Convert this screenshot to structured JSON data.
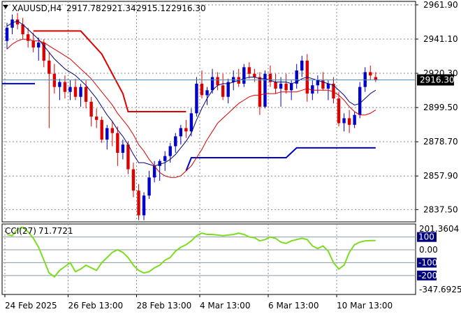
{
  "header": {
    "symbol": "XAUUSD,H4",
    "open": "2917.78",
    "high": "2921.34",
    "low": "2915.12",
    "close": "2916.30"
  },
  "colors": {
    "bull": "#0000cc",
    "bear": "#dd0000",
    "ma_fast": "#000080",
    "ma_slow": "#dd0000",
    "stop_up": "#0000cc",
    "stop_down": "#dd0000",
    "cci": "#7ddc1f",
    "grid": "#8a8a8a",
    "price_line": "#4a90c8",
    "level_line": "#8899aa",
    "price_badge_bg": "#000000",
    "level_badge_bg": "#000080"
  },
  "chart_data": [
    {
      "type": "candlestick",
      "title": "XAUUSD,H4",
      "x_labels": [
        "24 Feb 2025",
        "26 Feb 13:00",
        "28 Feb 13:00",
        "4 Mar 13:00",
        "6 Mar 13:00",
        "10 Mar 13:00"
      ],
      "y_ticks": [
        "2961.90",
        "2941.10",
        "2920.30",
        "2899.50",
        "2878.70",
        "2857.90",
        "2837.50"
      ],
      "ylim": [
        2830,
        2964
      ],
      "current_price": "2916.30",
      "grid": true,
      "candles": [
        [
          2940,
          2951,
          2935,
          2948
        ],
        [
          2948,
          2956,
          2944,
          2953
        ],
        [
          2953,
          2957,
          2947,
          2950
        ],
        [
          2950,
          2954,
          2941,
          2944
        ],
        [
          2944,
          2948,
          2936,
          2940
        ],
        [
          2940,
          2945,
          2933,
          2936
        ],
        [
          2936,
          2942,
          2928,
          2939
        ],
        [
          2939,
          2941,
          2924,
          2928
        ],
        [
          2928,
          2933,
          2887,
          2920
        ],
        [
          2920,
          2926,
          2908,
          2912
        ],
        [
          2912,
          2917,
          2904,
          2915
        ],
        [
          2915,
          2919,
          2905,
          2909
        ],
        [
          2909,
          2916,
          2904,
          2912
        ],
        [
          2912,
          2917,
          2904,
          2906
        ],
        [
          2906,
          2914,
          2900,
          2912
        ],
        [
          2912,
          2916,
          2899,
          2903
        ],
        [
          2903,
          2906,
          2888,
          2894
        ],
        [
          2894,
          2899,
          2887,
          2892
        ],
        [
          2892,
          2894,
          2878,
          2880
        ],
        [
          2880,
          2889,
          2874,
          2887
        ],
        [
          2887,
          2891,
          2876,
          2884
        ],
        [
          2884,
          2888,
          2864,
          2872
        ],
        [
          2872,
          2880,
          2868,
          2877
        ],
        [
          2877,
          2879,
          2859,
          2862
        ],
        [
          2862,
          2866,
          2845,
          2849
        ],
        [
          2849,
          2853,
          2831,
          2834
        ],
        [
          2834,
          2848,
          2831,
          2846
        ],
        [
          2846,
          2861,
          2844,
          2857
        ],
        [
          2857,
          2867,
          2854,
          2864
        ],
        [
          2864,
          2868,
          2855,
          2867
        ],
        [
          2867,
          2873,
          2861,
          2870
        ],
        [
          2870,
          2878,
          2866,
          2876
        ],
        [
          2876,
          2884,
          2872,
          2882
        ],
        [
          2882,
          2889,
          2877,
          2887
        ],
        [
          2887,
          2892,
          2881,
          2885
        ],
        [
          2885,
          2899,
          2882,
          2896
        ],
        [
          2896,
          2918,
          2894,
          2914
        ],
        [
          2914,
          2922,
          2905,
          2907
        ],
        [
          2907,
          2912,
          2901,
          2910
        ],
        [
          2910,
          2923,
          2908,
          2918
        ],
        [
          2918,
          2921,
          2910,
          2913
        ],
        [
          2913,
          2920,
          2904,
          2906
        ],
        [
          2906,
          2917,
          2902,
          2915
        ],
        [
          2915,
          2922,
          2910,
          2918
        ],
        [
          2918,
          2923,
          2912,
          2914
        ],
        [
          2914,
          2926,
          2912,
          2924
        ],
        [
          2924,
          2927,
          2917,
          2920
        ],
        [
          2920,
          2923,
          2915,
          2918
        ],
        [
          2918,
          2921,
          2895,
          2900
        ],
        [
          2900,
          2922,
          2899,
          2920
        ],
        [
          2920,
          2925,
          2912,
          2915
        ],
        [
          2915,
          2920,
          2908,
          2911
        ],
        [
          2911,
          2918,
          2900,
          2914
        ],
        [
          2914,
          2920,
          2908,
          2910
        ],
        [
          2910,
          2916,
          2904,
          2914
        ],
        [
          2914,
          2926,
          2911,
          2922
        ],
        [
          2922,
          2931,
          2918,
          2928
        ],
        [
          2928,
          2932,
          2903,
          2908
        ],
        [
          2908,
          2916,
          2904,
          2913
        ],
        [
          2913,
          2919,
          2908,
          2916
        ],
        [
          2916,
          2921,
          2910,
          2911
        ],
        [
          2911,
          2916,
          2904,
          2914
        ],
        [
          2914,
          2918,
          2902,
          2905
        ],
        [
          2905,
          2909,
          2888,
          2890
        ],
        [
          2890,
          2896,
          2885,
          2893
        ],
        [
          2893,
          2898,
          2884,
          2889
        ],
        [
          2889,
          2897,
          2887,
          2895
        ],
        [
          2895,
          2915,
          2893,
          2912
        ],
        [
          2912,
          2924,
          2909,
          2921
        ],
        [
          2921,
          2925,
          2916,
          2919
        ],
        [
          2918,
          2921,
          2915,
          2916
        ]
      ],
      "ma_fast": [
        2949,
        2951,
        2952,
        2950,
        2947,
        2944,
        2941,
        2937,
        2933,
        2929,
        2926,
        2923,
        2921,
        2919,
        2916,
        2913,
        2909,
        2905,
        2900,
        2895,
        2891,
        2886,
        2882,
        2877,
        2871,
        2866,
        2866,
        2865,
        2864,
        2865,
        2866,
        2868,
        2871,
        2875,
        2879,
        2884,
        2892,
        2899,
        2905,
        2910,
        2913,
        2914,
        2914,
        2915,
        2916,
        2917,
        2918,
        2918,
        2917,
        2917,
        2916,
        2915,
        2915,
        2915,
        2914,
        2915,
        2917,
        2918,
        2917,
        2916,
        2915,
        2914,
        2913,
        2910,
        2907,
        2903,
        2901,
        2902,
        2905,
        2908,
        2910
      ],
      "ma_slow": [
        2935,
        2938,
        2940,
        2941,
        2941,
        2940,
        2940,
        2939,
        2937,
        2935,
        2933,
        2931,
        2929,
        2926,
        2923,
        2920,
        2917,
        2913,
        2909,
        2905,
        2901,
        2896,
        2892,
        2888,
        2883,
        2877,
        2873,
        2868,
        2864,
        2860,
        2858,
        2857,
        2857,
        2858,
        2861,
        2864,
        2869,
        2874,
        2880,
        2885,
        2890,
        2893,
        2896,
        2899,
        2902,
        2904,
        2906,
        2907,
        2907,
        2908,
        2908,
        2908,
        2909,
        2909,
        2909,
        2909,
        2910,
        2911,
        2910,
        2910,
        2910,
        2910,
        2909,
        2907,
        2904,
        2900,
        2897,
        2895,
        2895,
        2896,
        2898
      ],
      "stop_down": [
        [
          5,
          2946
        ],
        [
          14,
          2946
        ],
        [
          18,
          2932
        ],
        [
          22,
          2908
        ],
        [
          23,
          2897
        ],
        [
          34,
          2897
        ]
      ],
      "stop_up": [
        [
          34,
          2861
        ],
        [
          35,
          2869
        ],
        [
          53,
          2869
        ],
        [
          55,
          2875
        ],
        [
          70,
          2875
        ]
      ],
      "ylabel": ""
    },
    {
      "type": "line",
      "indicator": "CCI(27)",
      "current_value": "71.7721",
      "y_ticks": [
        "201.3604",
        "100",
        "0.00",
        "-100",
        "-200",
        "-347.6925"
      ],
      "ylim": [
        -347.6925,
        201.3604
      ],
      "levels": [
        100,
        0,
        -100,
        -200
      ],
      "values": [
        120,
        110,
        160,
        175,
        140,
        90,
        20,
        -80,
        -180,
        -210,
        -160,
        -130,
        -100,
        -170,
        -150,
        -120,
        -140,
        -160,
        -100,
        -60,
        -20,
        0,
        -20,
        -60,
        -120,
        -160,
        -180,
        -170,
        -140,
        -120,
        -80,
        -60,
        -10,
        20,
        40,
        70,
        110,
        130,
        120,
        120,
        115,
        110,
        115,
        120,
        130,
        120,
        100,
        95,
        70,
        80,
        100,
        90,
        60,
        50,
        70,
        80,
        90,
        80,
        30,
        10,
        30,
        -10,
        -100,
        -150,
        -120,
        -20,
        40,
        60,
        70,
        72,
        71.7721
      ]
    }
  ]
}
